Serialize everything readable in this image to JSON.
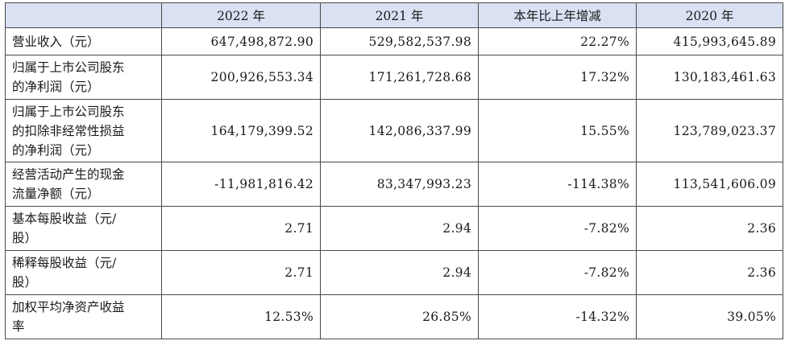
{
  "table": {
    "headers": [
      "",
      "2022 年",
      "2021 年",
      "本年比上年增减",
      "2020 年"
    ],
    "rows": [
      {
        "label": "营业收入（元）",
        "values": [
          "647,498,872.90",
          "529,582,537.98",
          "22.27%",
          "415,993,645.89"
        ]
      },
      {
        "label": "归属于上市公司股东\n的净利润（元）",
        "values": [
          "200,926,553.34",
          "171,261,728.68",
          "17.32%",
          "130,183,461.63"
        ]
      },
      {
        "label": "归属于上市公司股东\n的扣除非经常性损益\n的净利润（元）",
        "values": [
          "164,179,399.52",
          "142,086,337.99",
          "15.55%",
          "123,789,023.37"
        ]
      },
      {
        "label": "经营活动产生的现金\n流量净额（元）",
        "values": [
          "-11,981,816.42",
          "83,347,993.23",
          "-114.38%",
          "113,541,606.09"
        ]
      },
      {
        "label": "基本每股收益（元/\n股）",
        "values": [
          "2.71",
          "2.94",
          "-7.82%",
          "2.36"
        ]
      },
      {
        "label": "稀释每股收益（元/\n股）",
        "values": [
          "2.71",
          "2.94",
          "-7.82%",
          "2.36"
        ]
      },
      {
        "label": "加权平均净资产收益\n率",
        "values": [
          "12.53%",
          "26.85%",
          "-14.32%",
          "39.05%"
        ]
      }
    ]
  },
  "colors": {
    "header_bg": "#d9e1f2",
    "border": "#4a4a4a",
    "text": "#1a1a1a"
  }
}
